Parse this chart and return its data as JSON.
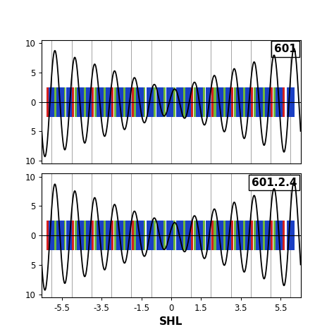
{
  "title1": "601",
  "title2": "601.2.4",
  "xlabel": "SHL",
  "ylim": [
    -10.5,
    10.5
  ],
  "xlim": [
    -6.5,
    6.5
  ],
  "xticks": [
    -5.5,
    -3.5,
    -1.5,
    0,
    1.5,
    3.5,
    5.5
  ],
  "xtick_labels": [
    "-5.5",
    "-3.5",
    "-1.5",
    "0",
    "1.5",
    "3.5",
    "5.5"
  ],
  "yticks": [
    -10,
    -5,
    0,
    5,
    10
  ],
  "ytick_labels": [
    "10",
    "5",
    "0",
    "5",
    "10"
  ],
  "vline_positions": [
    -6.0,
    -5.0,
    -4.0,
    -3.0,
    -2.0,
    -1.0,
    0.0,
    1.0,
    2.0,
    3.0,
    4.0,
    5.0,
    6.0
  ],
  "bar_height": 2.5,
  "background_color": "white",
  "curve_color": "black",
  "curve_linewidth": 1.3,
  "color_blue": "#1a3fc4",
  "color_red": "#d42020",
  "color_green": "#6db83a",
  "bar_groups_top": [
    [
      -6.0,
      [
        "red",
        "blue",
        "green"
      ]
    ],
    [
      -5.5,
      [
        "blue",
        "green"
      ]
    ],
    [
      -5.0,
      [
        "blue",
        "red",
        "green"
      ]
    ],
    [
      -4.5,
      [
        "blue",
        "green"
      ]
    ],
    [
      -4.0,
      [
        "blue",
        "red",
        "green"
      ]
    ],
    [
      -3.5,
      [
        "blue",
        "green"
      ]
    ],
    [
      -3.0,
      [
        "blue",
        "red",
        "green"
      ]
    ],
    [
      -2.5,
      [
        "blue",
        "green"
      ]
    ],
    [
      -2.0,
      [
        "blue",
        "red",
        "green"
      ]
    ],
    [
      -1.5,
      [
        "blue",
        "green"
      ]
    ],
    [
      -1.0,
      [
        "blue",
        "green"
      ]
    ],
    [
      -0.5,
      [
        "blue",
        "green"
      ]
    ],
    [
      0.0,
      [
        "blue",
        "green"
      ]
    ],
    [
      0.5,
      [
        "blue",
        "green"
      ]
    ],
    [
      1.0,
      [
        "blue",
        "red",
        "green"
      ]
    ],
    [
      1.5,
      [
        "blue",
        "green"
      ]
    ],
    [
      2.0,
      [
        "blue",
        "red",
        "green"
      ]
    ],
    [
      2.5,
      [
        "blue",
        "green"
      ]
    ],
    [
      3.0,
      [
        "blue",
        "red",
        "green"
      ]
    ],
    [
      3.5,
      [
        "blue",
        "green"
      ]
    ],
    [
      4.0,
      [
        "blue",
        "red",
        "green"
      ]
    ],
    [
      4.5,
      [
        "blue",
        "green"
      ]
    ],
    [
      5.0,
      [
        "blue",
        "red",
        "green"
      ]
    ],
    [
      5.5,
      [
        "blue",
        "red"
      ]
    ],
    [
      6.0,
      [
        "blue"
      ]
    ]
  ],
  "bar_groups_bot": [
    [
      -6.0,
      [
        "red",
        "blue",
        "green"
      ]
    ],
    [
      -5.5,
      [
        "blue",
        "green"
      ]
    ],
    [
      -5.0,
      [
        "blue",
        "red",
        "green"
      ]
    ],
    [
      -4.5,
      [
        "blue",
        "green"
      ]
    ],
    [
      -4.0,
      [
        "blue",
        "red",
        "green"
      ]
    ],
    [
      -3.5,
      [
        "blue",
        "green"
      ]
    ],
    [
      -3.0,
      [
        "blue",
        "red",
        "green"
      ]
    ],
    [
      -2.5,
      [
        "blue",
        "green"
      ]
    ],
    [
      -2.0,
      [
        "blue",
        "red",
        "green"
      ]
    ],
    [
      -1.5,
      [
        "blue",
        "green"
      ]
    ],
    [
      -1.0,
      [
        "blue",
        "green"
      ]
    ],
    [
      -0.5,
      [
        "blue",
        "green"
      ]
    ],
    [
      0.0,
      [
        "blue",
        "green"
      ]
    ],
    [
      0.5,
      [
        "blue",
        "green"
      ]
    ],
    [
      1.0,
      [
        "blue",
        "red",
        "green"
      ]
    ],
    [
      1.5,
      [
        "blue",
        "green"
      ]
    ],
    [
      2.0,
      [
        "blue",
        "red",
        "green"
      ]
    ],
    [
      2.5,
      [
        "blue",
        "green"
      ]
    ],
    [
      3.0,
      [
        "blue",
        "red",
        "green"
      ]
    ],
    [
      3.5,
      [
        "blue",
        "green"
      ]
    ],
    [
      4.0,
      [
        "blue",
        "red",
        "green"
      ]
    ],
    [
      4.5,
      [
        "blue",
        "green"
      ]
    ],
    [
      5.0,
      [
        "blue",
        "red",
        "green"
      ]
    ],
    [
      5.5,
      [
        "blue",
        "red"
      ]
    ],
    [
      6.0,
      [
        "blue"
      ]
    ]
  ]
}
